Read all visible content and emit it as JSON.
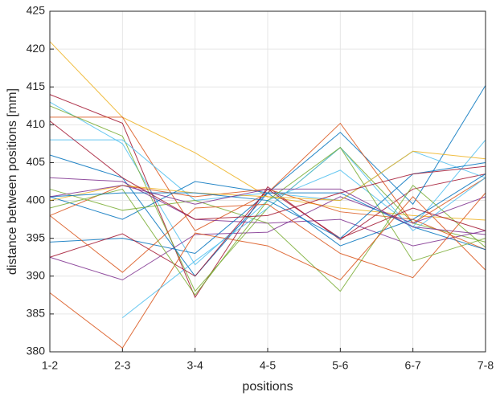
{
  "chart_data": {
    "type": "line",
    "xlabel": "positions",
    "ylabel": "distance between positions [mm]",
    "categories": [
      "1-2",
      "2-3",
      "3-4",
      "4-5",
      "5-6",
      "6-7",
      "7-8"
    ],
    "ylim": [
      380,
      425
    ],
    "yticks": [
      380,
      385,
      390,
      395,
      400,
      405,
      410,
      415,
      420,
      425
    ],
    "grid": true,
    "series": [
      {
        "color": "#EDB120",
        "values": [
          421,
          411,
          406.3,
          400.5,
          399,
          398,
          397.4
        ]
      },
      {
        "color": "#A2142F",
        "values": [
          414,
          410.2,
          387.2,
          401.8,
          394.8,
          401.5,
          403.5
        ]
      },
      {
        "color": "#4DBEEE",
        "values": [
          413,
          407.5,
          391.5,
          400,
          404,
          396.5,
          408
        ]
      },
      {
        "color": "#77AC30",
        "values": [
          412.5,
          408.5,
          388,
          399,
          407,
          397,
          394.5
        ]
      },
      {
        "color": "#0072BD",
        "values": [
          406,
          403,
          390,
          401,
          409,
          399.5,
          415.2
        ]
      },
      {
        "color": "#D95319",
        "values": [
          411,
          411,
          396,
          401,
          410.2,
          397,
          403
        ]
      },
      {
        "color": "#4DBEEE",
        "values": [
          408,
          408,
          400,
          401,
          400,
          406.5,
          403
        ]
      },
      {
        "color": "#7E2F8E",
        "values": [
          403,
          402.5,
          397.5,
          397,
          397.5,
          394,
          396
        ]
      },
      {
        "color": "#0072BD",
        "values": [
          400.5,
          397.5,
          402.5,
          401,
          394,
          397.5,
          403.5
        ]
      },
      {
        "color": "#D95319",
        "values": [
          398,
          402,
          400.5,
          401.5,
          398.5,
          397.5,
          393.5
        ]
      },
      {
        "color": "#77AC30",
        "values": [
          401.5,
          398.7,
          400,
          397,
          388,
          402,
          393.8
        ]
      },
      {
        "color": "#7E2F8E",
        "values": [
          392.5,
          389.5,
          395.5,
          395.8,
          400.5,
          397,
          400.5
        ]
      },
      {
        "color": "#0072BD",
        "values": [
          394.5,
          395,
          393,
          401,
          401,
          396.5,
          393.5
        ]
      },
      {
        "color": "#D95319",
        "values": [
          387.8,
          380.5,
          395.7,
          394,
          389.5,
          400.5,
          390.8
        ]
      },
      {
        "color": "#4DBEEE",
        "values": [
          null,
          384.5,
          392,
          399,
          407,
          396,
          403
        ]
      },
      {
        "color": "#A2142F",
        "values": [
          392.5,
          395.6,
          390,
          401.5,
          395,
          399,
          396
        ]
      },
      {
        "color": "#D95319",
        "values": [
          398,
          390.5,
          399,
          399.5,
          393,
          389.8,
          401
        ]
      },
      {
        "color": "#EDB120",
        "values": [
          400,
          402,
          401,
          400.5,
          400,
          406.5,
          405.5
        ]
      },
      {
        "color": "#77AC30",
        "values": [
          399,
          401.5,
          387.5,
          400,
          407,
          392,
          395
        ]
      },
      {
        "color": "#0072BD",
        "values": [
          400.5,
          401,
          401,
          400,
          395,
          403.5,
          405
        ]
      },
      {
        "color": "#A2142F",
        "values": [
          410.5,
          403,
          397.5,
          398,
          401,
          403.5,
          404.5
        ]
      },
      {
        "color": "#7E2F8E",
        "values": [
          400.5,
          402,
          399.5,
          401.5,
          401.5,
          396.5,
          395.5
        ]
      }
    ]
  }
}
